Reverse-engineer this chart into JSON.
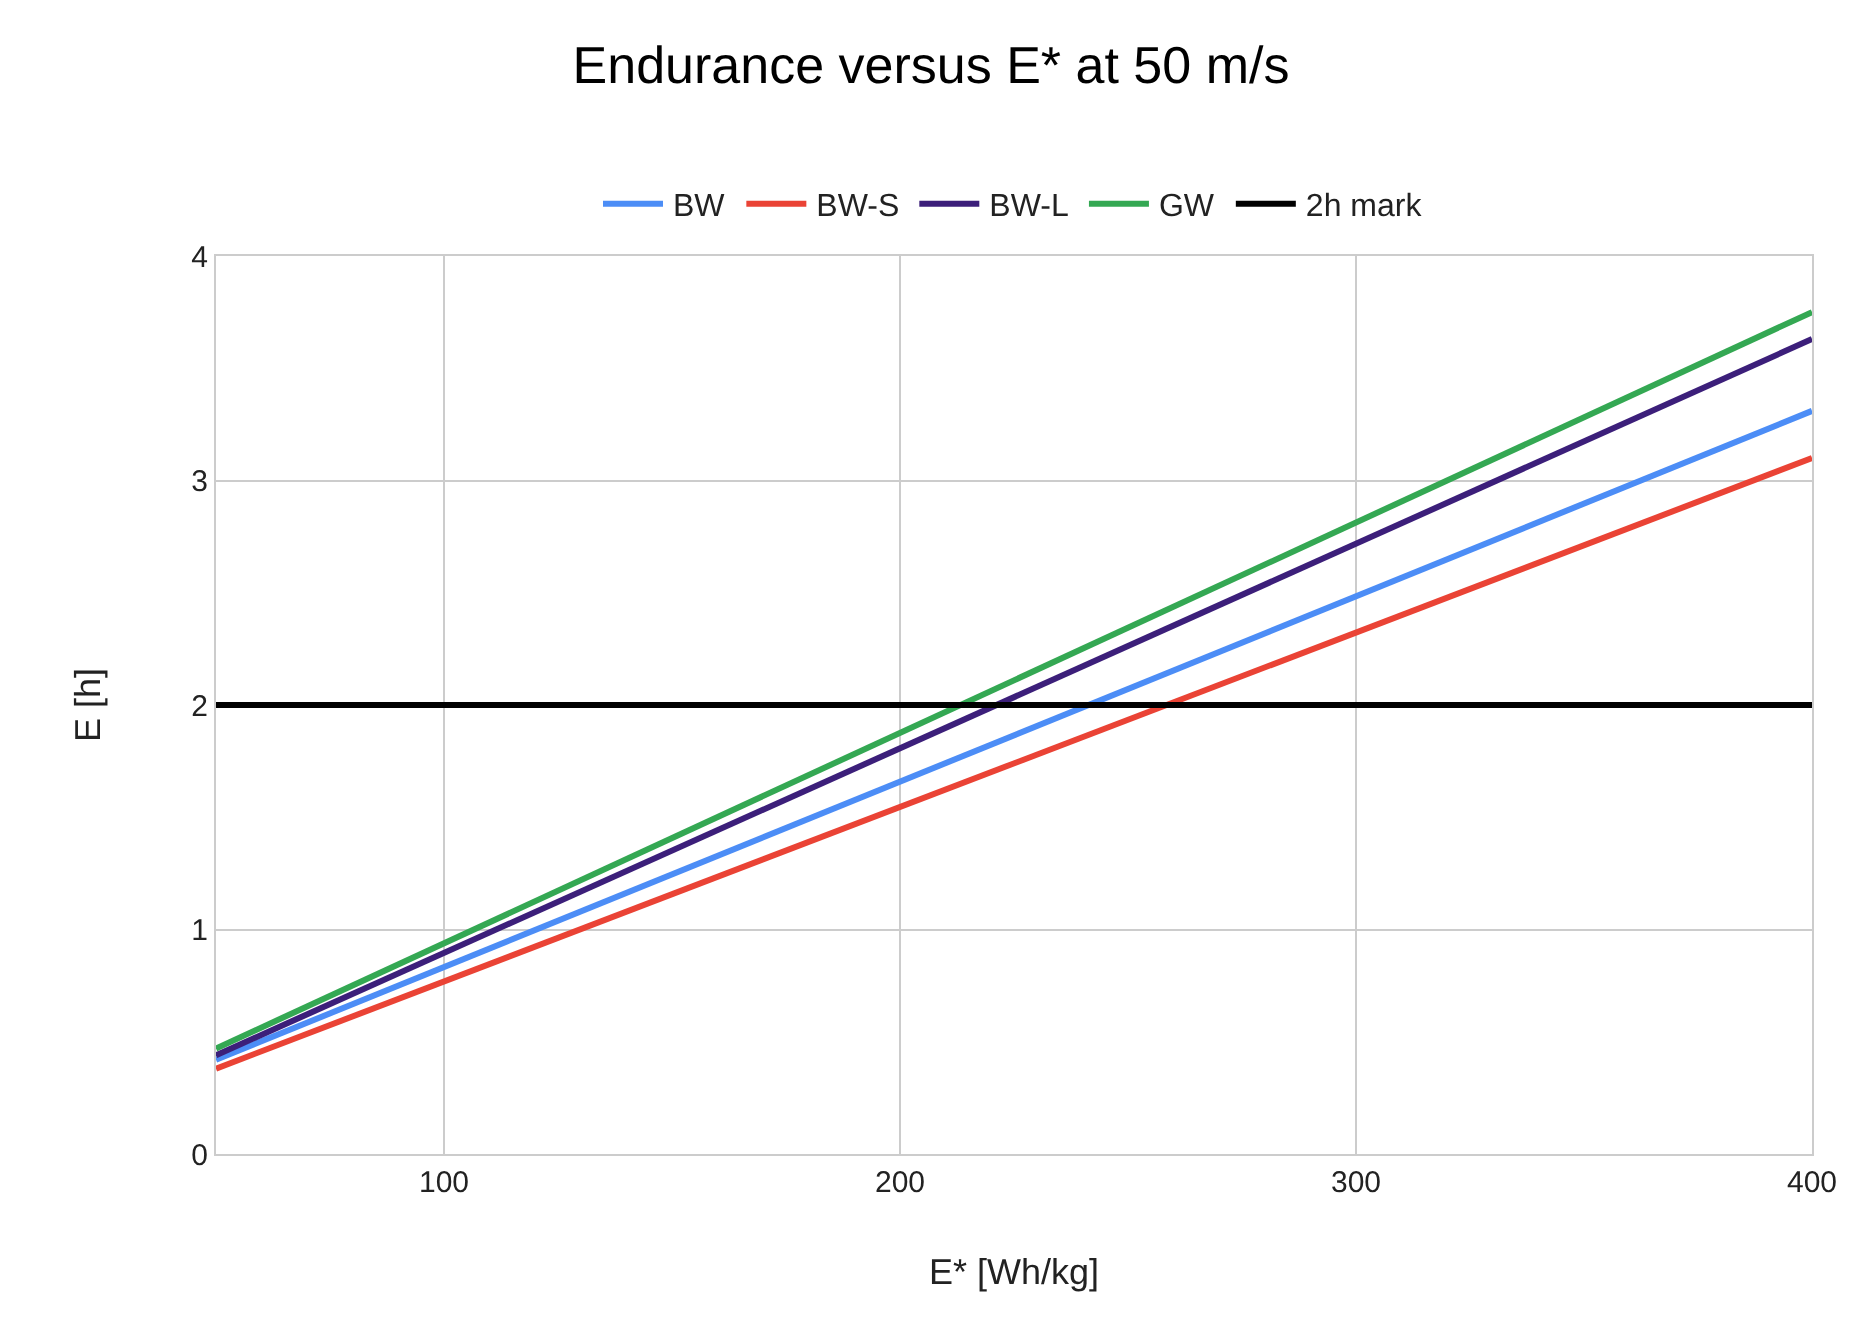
{
  "chart_data": {
    "type": "line",
    "title": "Endurance versus E* at 50 m/s",
    "xlabel": "E* [Wh/kg]",
    "ylabel": "E [h]",
    "x": [
      50,
      400
    ],
    "series": [
      {
        "name": "BW",
        "color": "#4c8df6",
        "values": [
          0.42,
          3.31
        ]
      },
      {
        "name": "BW-S",
        "color": "#ea4335",
        "values": [
          0.38,
          3.1
        ]
      },
      {
        "name": "BW-L",
        "color": "#3c1f7a",
        "values": [
          0.44,
          3.63
        ]
      },
      {
        "name": "GW",
        "color": "#34a853",
        "values": [
          0.47,
          3.75
        ]
      },
      {
        "name": "2h mark",
        "color": "#000000",
        "values": [
          2,
          2
        ]
      }
    ],
    "xlim": [
      50,
      400
    ],
    "xticks": [
      100,
      200,
      300,
      400
    ],
    "ylim": [
      0,
      4
    ],
    "yticks": [
      0,
      1,
      2,
      3,
      4
    ],
    "grid": true,
    "legend": "top",
    "marker": "none",
    "line_style": "solid"
  }
}
